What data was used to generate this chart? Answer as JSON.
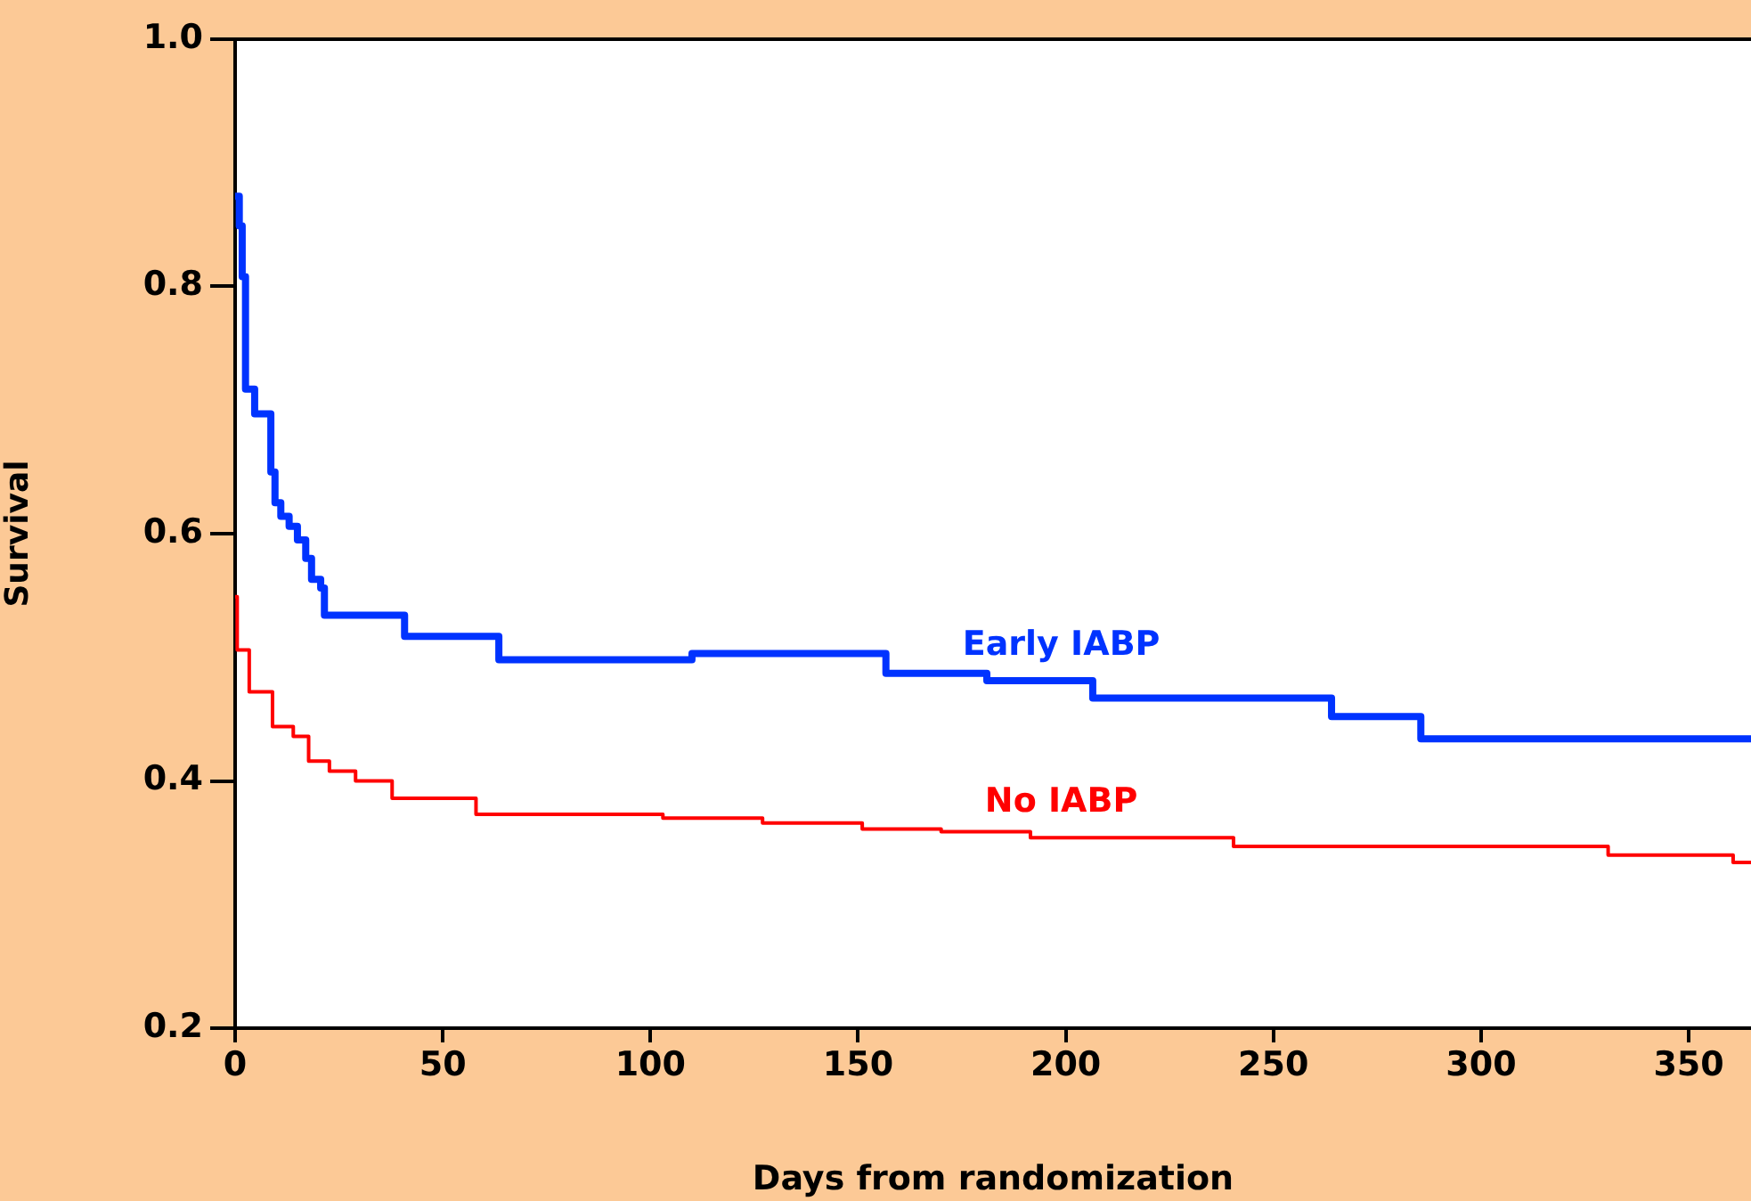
{
  "chart_data": {
    "type": "step",
    "xlabel": "Days from randomization",
    "ylabel": "Survival",
    "xlim": [
      0,
      365
    ],
    "xticks": [
      0,
      50,
      100,
      150,
      200,
      250,
      300,
      350
    ],
    "ylim": [
      0.2,
      1.0
    ],
    "yticks": [
      {
        "value": 0.2,
        "label": "0.2"
      },
      0.4,
      0.6,
      0.8,
      {
        "value": 1.0,
        "label": "1.0"
      }
    ],
    "grid": false,
    "legend": false,
    "marker": "none",
    "line_style": "solid",
    "series": [
      {
        "name": "Early IABP",
        "color": "#0033ff",
        "x": [
          0,
          1,
          1.7,
          2.5,
          4.7,
          8.6,
          9.6,
          11,
          13,
          15,
          17,
          18.4,
          20.6,
          21.5,
          40.8,
          63.5,
          110,
          156.7,
          181,
          206.5,
          264,
          285.5,
          365
        ],
        "values": [
          0.873,
          0.849,
          0.808,
          0.717,
          0.697,
          0.65,
          0.625,
          0.614,
          0.606,
          0.595,
          0.58,
          0.563,
          0.556,
          0.534,
          0.517,
          0.498,
          0.503,
          0.487,
          0.481,
          0.467,
          0.452,
          0.434,
          0.434
        ]
      },
      {
        "name": "No IABP",
        "color": "#ff0000",
        "x": [
          0,
          0.5,
          3.4,
          9,
          14,
          17.7,
          22.7,
          29,
          37.8,
          58,
          103,
          127,
          151,
          170,
          191.5,
          240.4,
          330.6,
          360.7,
          365
        ],
        "values": [
          0.549,
          0.506,
          0.472,
          0.444,
          0.436,
          0.416,
          0.408,
          0.4,
          0.386,
          0.373,
          0.37,
          0.366,
          0.361,
          0.359,
          0.354,
          0.347,
          0.34,
          0.334,
          0.334
        ]
      }
    ]
  }
}
